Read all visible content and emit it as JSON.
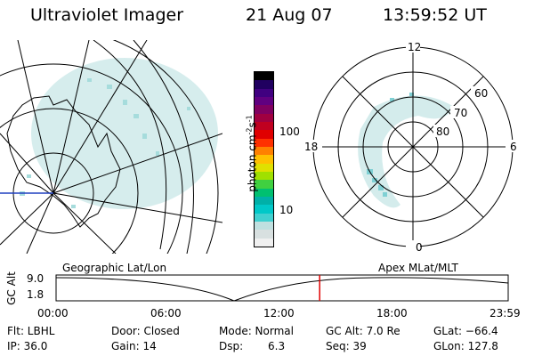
{
  "header": {
    "instrument": "Ultraviolet Imager",
    "date": "21 Aug 07",
    "time": "13:59:52 UT"
  },
  "colorbar": {
    "unit_label": "photon cm",
    "unit_sup1": "-2",
    "unit_s": "s",
    "unit_sup2": "-1",
    "tick_labels": [
      "100",
      "10"
    ],
    "colors": [
      "#f0f0f0",
      "#d8e0e0",
      "#c0e0e0",
      "#40d0d0",
      "#00c8c8",
      "#00b0a8",
      "#00c070",
      "#40d040",
      "#a0e000",
      "#e0e000",
      "#ffc000",
      "#ff8000",
      "#ff3000",
      "#e00000",
      "#c00020",
      "#a00040",
      "#800060",
      "#600080",
      "#400080",
      "#200060",
      "#000000"
    ]
  },
  "polar_plot": {
    "hour_labels": {
      "top": "12",
      "left": "18",
      "right": "6",
      "bottom": "0"
    },
    "lat_labels": [
      "60",
      "70",
      "80"
    ]
  },
  "timeline": {
    "axis_label": "GC Alt",
    "ymax": "9.0",
    "ymin": "1.8",
    "left_label": "Geographic Lat/Lon",
    "right_label": "Apex  MLat/MLT",
    "ticks": [
      "00:00",
      "06:00",
      "12:00",
      "18:00",
      "23:59"
    ],
    "current_time_fraction": 0.583
  },
  "info": {
    "filter": "Flt: LBHL",
    "ip": "IP: 36.0",
    "door": "Door: Closed",
    "gain": "Gain: 14",
    "mode": "Mode: Normal",
    "dsp_label": "Dsp:",
    "dsp_value": "6.3",
    "gc_alt": "GC Alt: 7.0 Re",
    "seq": "Seq: 39",
    "glat": "GLat: −66.4",
    "glon": "GLon: 127.8"
  }
}
